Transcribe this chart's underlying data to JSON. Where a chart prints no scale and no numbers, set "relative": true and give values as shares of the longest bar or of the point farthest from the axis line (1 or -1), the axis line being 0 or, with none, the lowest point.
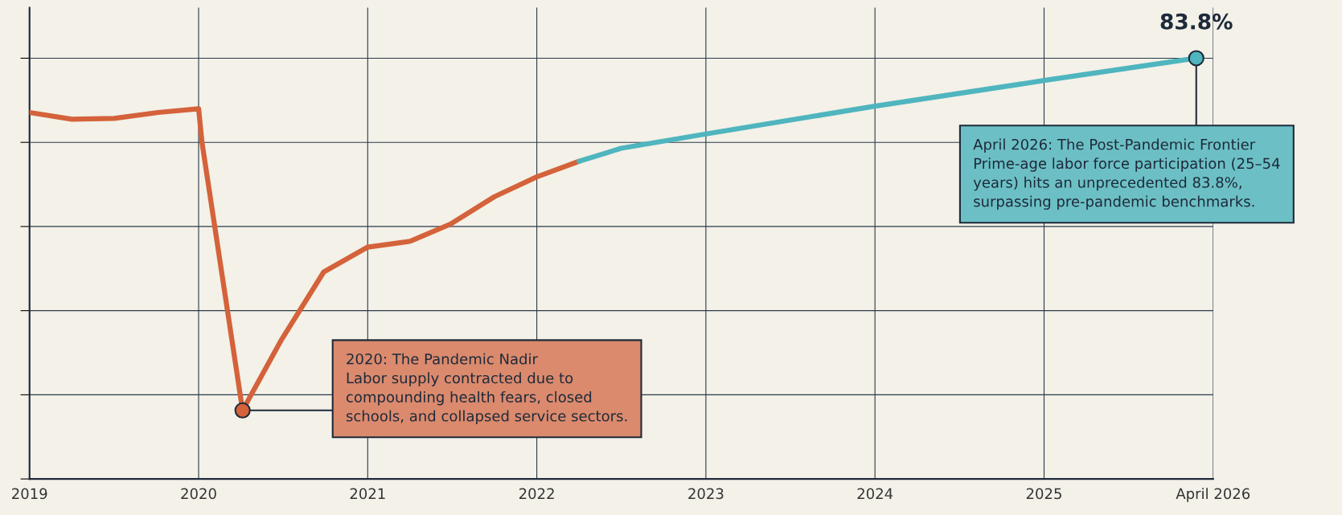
{
  "chart_data": {
    "type": "line",
    "relative": true,
    "xlim": [
      2019,
      2026
    ],
    "xticks": [
      2019,
      2020,
      2021,
      2022,
      2023,
      2024,
      2025,
      {
        "value": 2026,
        "label": "April 2026"
      }
    ],
    "series": [
      {
        "color": "#d4623a",
        "x": [
          2019,
          2019.25,
          2019.5,
          2019.76,
          2020,
          2020.02,
          2020.26,
          2020.49,
          2020.74,
          2021,
          2021.25,
          2021.49,
          2021.75,
          2022,
          2022.25
        ],
        "values": [
          0.871,
          0.855,
          0.857,
          0.871,
          0.88,
          0.8,
          0.163,
          0.331,
          0.492,
          0.551,
          0.565,
          0.606,
          0.671,
          0.718,
          0.755
        ]
      },
      {
        "color": "#4fb5bf",
        "x": [
          2022.25,
          2022.5,
          2023,
          2024,
          2025,
          2025.9
        ],
        "values": [
          0.755,
          0.786,
          0.82,
          0.886,
          0.947,
          1
        ]
      }
    ],
    "annotations": [
      {
        "text": "2020: The Pandemic Nadir\nLabor supply contracted due to\ncompounding health fears, closed\nschools, and collapsed service sectors.",
        "x": 2020.26,
        "y": 0.163
      },
      {
        "text": "April 2026: The Post-Pandemic Frontier\nPrime-age labor force participation (25–54\nyears) hits an unprecedented 83.8%,\nsurpassing pre-pandemic benchmarks.",
        "x": 2025.9,
        "y": 1
      },
      "83.8%"
    ],
    "grid": true,
    "tick_labels": "x",
    "line_style": "solid"
  }
}
